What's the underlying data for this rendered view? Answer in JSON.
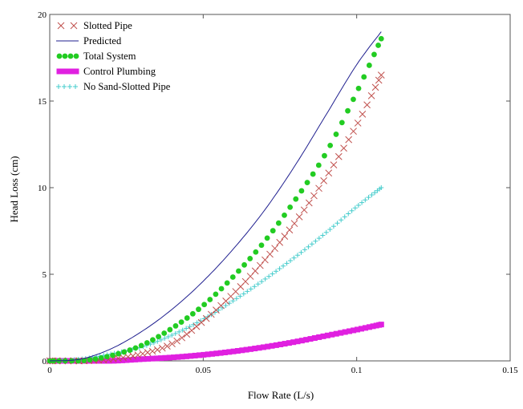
{
  "chart_data": {
    "type": "scatter",
    "xlabel": "Flow Rate (L/s)",
    "ylabel": "Head Loss (cm)",
    "xlim": [
      0,
      0.15
    ],
    "ylim": [
      0,
      20
    ],
    "x_ticks": [
      0,
      0.05,
      0.1,
      0.15
    ],
    "x_tick_labels": [
      "0",
      "0.05",
      "0.1",
      "0.15"
    ],
    "y_ticks": [
      0,
      5,
      10,
      15,
      20
    ],
    "y_tick_labels": [
      "0",
      "5",
      "10",
      "15",
      "20"
    ],
    "grid": false,
    "legend_position": "top-left",
    "series": [
      {
        "name": "Slotted Pipe",
        "marker": "x",
        "color": "#c0504d",
        "x": [
          0.0,
          0.01,
          0.02,
          0.03,
          0.04,
          0.05,
          0.06,
          0.07,
          0.08,
          0.09,
          0.1,
          0.108
        ],
        "y": [
          0.0,
          0.0,
          0.1,
          0.4,
          1.0,
          2.3,
          3.9,
          5.8,
          8.0,
          10.6,
          13.6,
          16.5
        ]
      },
      {
        "name": "Predicted",
        "marker": "line",
        "color": "#1f1f8f",
        "x": [
          0.0,
          0.01,
          0.02,
          0.03,
          0.04,
          0.05,
          0.06,
          0.07,
          0.08,
          0.09,
          0.1,
          0.108
        ],
        "y": [
          0.0,
          0.1,
          0.7,
          1.7,
          3.0,
          4.6,
          6.5,
          8.7,
          11.3,
          14.2,
          17.1,
          19.0
        ]
      },
      {
        "name": "Total System",
        "marker": "circle",
        "color": "#22cc22",
        "x": [
          0.0,
          0.01,
          0.02,
          0.03,
          0.04,
          0.05,
          0.06,
          0.07,
          0.08,
          0.09,
          0.1,
          0.108
        ],
        "y": [
          0.0,
          0.0,
          0.3,
          0.9,
          1.9,
          3.2,
          4.9,
          6.9,
          9.3,
          12.0,
          15.5,
          18.6
        ]
      },
      {
        "name": "Control Plumbing",
        "marker": "square",
        "color": "#e020e0",
        "x": [
          0.0,
          0.01,
          0.02,
          0.03,
          0.04,
          0.05,
          0.06,
          0.07,
          0.08,
          0.09,
          0.1,
          0.108
        ],
        "y": [
          0.0,
          0.0,
          0.0,
          0.1,
          0.2,
          0.35,
          0.55,
          0.8,
          1.1,
          1.45,
          1.8,
          2.1
        ]
      },
      {
        "name": "No Sand-Slotted Pipe",
        "marker": "plus",
        "color": "#44cccc",
        "x": [
          0.0,
          0.01,
          0.02,
          0.03,
          0.04,
          0.05,
          0.06,
          0.07,
          0.08,
          0.09,
          0.1,
          0.108
        ],
        "y": [
          0.0,
          0.1,
          0.4,
          0.8,
          1.5,
          2.4,
          3.5,
          4.7,
          6.0,
          7.4,
          8.9,
          10.0
        ]
      }
    ]
  }
}
